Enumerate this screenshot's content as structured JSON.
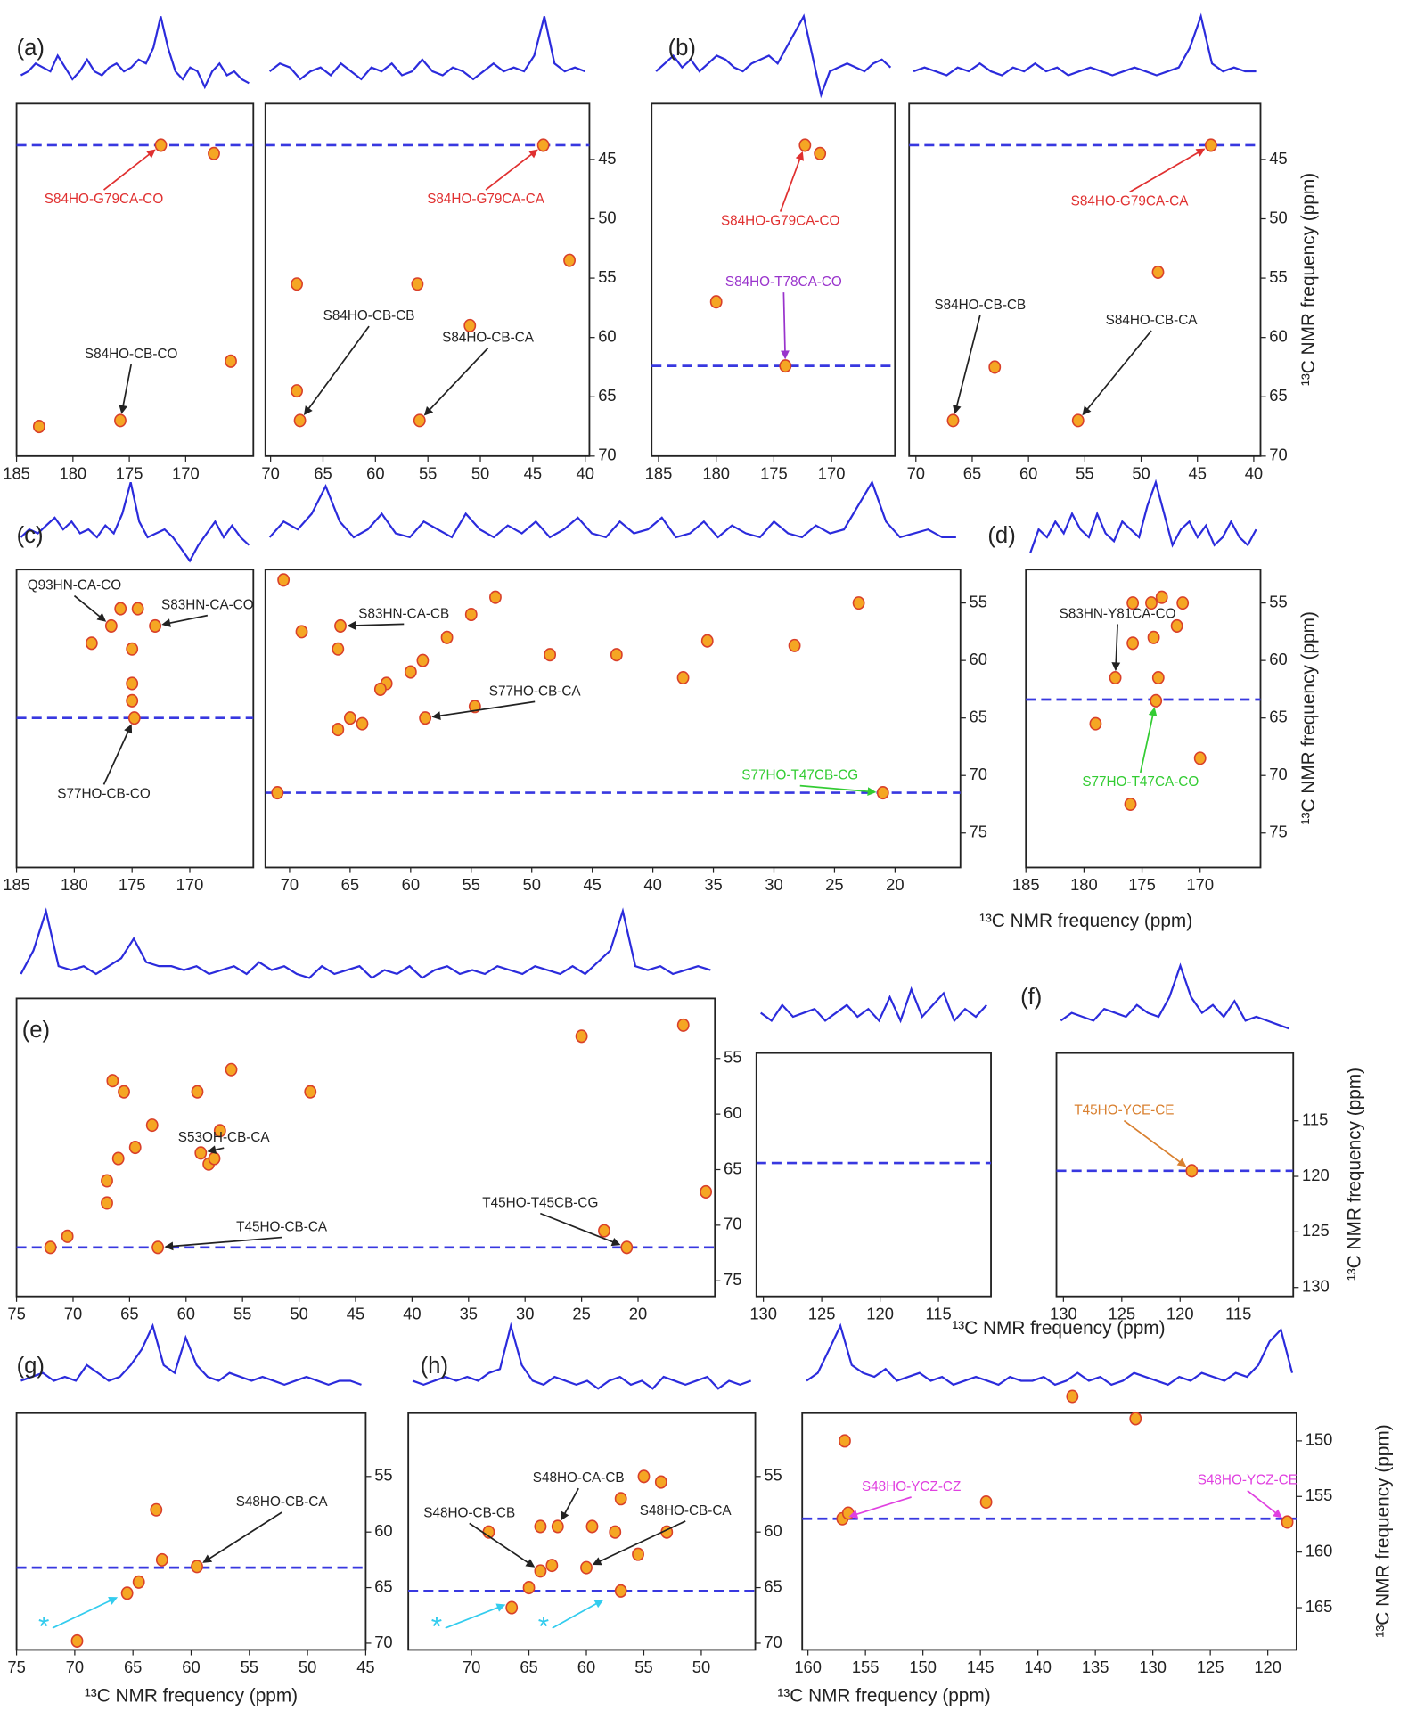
{
  "colors": {
    "trace": "#2b2bdc",
    "peak": "#f5a623",
    "contour": "#d9402a",
    "hline": "#3838e0",
    "frame": "#222222"
  },
  "chart_data": [
    {
      "type": "contour",
      "label": "(a)",
      "xlim": [
        185,
        164
      ],
      "xticks": [
        185,
        180,
        175,
        170
      ],
      "ylim": [
        40.3,
        70
      ],
      "trace": [
        0.25,
        0.3,
        0.4,
        0.35,
        0.3,
        0.5,
        0.35,
        0.2,
        0.3,
        0.45,
        0.3,
        0.25,
        0.35,
        0.4,
        0.3,
        0.35,
        0.45,
        0.4,
        0.6,
        1.0,
        0.6,
        0.3,
        0.2,
        0.35,
        0.3,
        0.1,
        0.3,
        0.4,
        0.25,
        0.3,
        0.2,
        0.15
      ],
      "peaks": {
        "x": [
          172.2,
          175.8,
          167.5,
          166,
          183
        ],
        "y": [
          43.8,
          67,
          44.5,
          62,
          67.5
        ]
      },
      "hline": 43.8,
      "annotations": [
        {
          "text": "S84HO-G79CA-CO",
          "x": 172.2,
          "y": 43.8,
          "color": "#e03030"
        },
        {
          "text": "S84HO-CB-CO",
          "x": 175.8,
          "y": 67,
          "color": "#222222"
        }
      ]
    },
    {
      "type": "contour",
      "xlim": [
        70.5,
        39.6
      ],
      "xticks": [
        70,
        65,
        60,
        55,
        50,
        45,
        40
      ],
      "ylim": [
        40.3,
        70
      ],
      "yticks": [
        45,
        50,
        55,
        60,
        65,
        70
      ],
      "trace": [
        0.3,
        0.4,
        0.35,
        0.2,
        0.3,
        0.35,
        0.25,
        0.4,
        0.3,
        0.2,
        0.35,
        0.3,
        0.4,
        0.25,
        0.3,
        0.45,
        0.3,
        0.25,
        0.35,
        0.3,
        0.2,
        0.3,
        0.4,
        0.3,
        0.35,
        0.3,
        0.5,
        1.0,
        0.4,
        0.3,
        0.35,
        0.3
      ],
      "peaks": {
        "x": [
          44,
          67.2,
          55.8,
          67.5,
          56,
          67.5,
          41.5,
          51
        ],
        "y": [
          43.8,
          67,
          67,
          55.5,
          55.5,
          64.5,
          53.5,
          59
        ]
      },
      "hline": 43.8,
      "annotations": [
        {
          "text": "S84HO-G79CA-CA",
          "x": 44,
          "y": 43.8,
          "color": "#e03030"
        },
        {
          "text": "S84HO-CB-CB",
          "x": 67.2,
          "y": 67,
          "color": "#222222"
        },
        {
          "text": "S84HO-CB-CA",
          "x": 55.8,
          "y": 67,
          "color": "#222222"
        }
      ]
    },
    {
      "type": "contour",
      "label": "(b)",
      "xlim": [
        185.6,
        164.5
      ],
      "xticks": [
        185,
        180,
        175,
        170
      ],
      "ylim": [
        40.3,
        70
      ],
      "trace": [
        0.3,
        0.4,
        0.5,
        0.35,
        0.45,
        0.3,
        0.4,
        0.5,
        0.45,
        0.35,
        0.3,
        0.4,
        0.45,
        0.5,
        0.4,
        0.6,
        0.8,
        1.0,
        0.5,
        0.0,
        0.3,
        0.35,
        0.4,
        0.35,
        0.3,
        0.4,
        0.45,
        0.35
      ],
      "peaks": {
        "x": [
          172.3,
          174,
          180,
          171
        ],
        "y": [
          43.8,
          62.4,
          57,
          44.5
        ]
      },
      "hline": 62.4,
      "annotations": [
        {
          "text": "S84HO-G79CA-CO",
          "x": 172.3,
          "y": 43.8,
          "color": "#e03030"
        },
        {
          "text": "S84HO-T78CA-CO",
          "x": 174,
          "y": 62.4,
          "color": "#9933cc"
        }
      ]
    },
    {
      "type": "contour",
      "xlim": [
        70.6,
        39.4
      ],
      "xticks": [
        70,
        65,
        60,
        55,
        50,
        45,
        40
      ],
      "ylim": [
        40.3,
        70
      ],
      "yticks": [
        45,
        50,
        55,
        60,
        65,
        70
      ],
      "ylabel": "¹³C NMR frequency (ppm)",
      "trace": [
        0.3,
        0.35,
        0.3,
        0.25,
        0.35,
        0.3,
        0.4,
        0.3,
        0.25,
        0.35,
        0.3,
        0.4,
        0.3,
        0.35,
        0.25,
        0.3,
        0.35,
        0.3,
        0.25,
        0.3,
        0.35,
        0.3,
        0.25,
        0.3,
        0.35,
        0.6,
        1.0,
        0.4,
        0.3,
        0.35,
        0.3,
        0.3
      ],
      "peaks": {
        "x": [
          43.8,
          66.7,
          55.6,
          63,
          48.5
        ],
        "y": [
          43.8,
          67,
          67,
          62.5,
          54.5
        ]
      },
      "hline": 43.8,
      "annotations": [
        {
          "text": "S84HO-G79CA-CA",
          "x": 43.8,
          "y": 43.8,
          "color": "#e03030"
        },
        {
          "text": "S84HO-CB-CB",
          "x": 66.7,
          "y": 67,
          "color": "#222222"
        },
        {
          "text": "S84HO-CB-CA",
          "x": 55.6,
          "y": 67,
          "color": "#222222"
        }
      ]
    },
    {
      "type": "contour",
      "label": "(c)",
      "xlim": [
        185,
        164.5
      ],
      "xticks": [
        185,
        180,
        175,
        170
      ],
      "ylim": [
        52.1,
        78
      ],
      "trace": [
        0.3,
        0.4,
        0.35,
        0.45,
        0.55,
        0.4,
        0.5,
        0.35,
        0.4,
        0.3,
        0.45,
        0.35,
        0.6,
        1.0,
        0.5,
        0.3,
        0.35,
        0.4,
        0.3,
        0.15,
        0.0,
        0.2,
        0.35,
        0.5,
        0.3,
        0.45,
        0.3,
        0.2
      ],
      "peaks": {
        "x": [
          176.8,
          173,
          174.8,
          176,
          174.5,
          175,
          175,
          175,
          178.5
        ],
        "y": [
          57,
          57,
          65,
          55.5,
          55.5,
          59,
          62,
          63.5,
          58.5
        ]
      },
      "hline": 65,
      "annotations": [
        {
          "text": "Q93HN-CA-CO",
          "x": 176.8,
          "y": 57,
          "color": "#222222"
        },
        {
          "text": "S83HN-CA-CO",
          "x": 173,
          "y": 57,
          "color": "#222222"
        },
        {
          "text": "S77HO-CB-CO",
          "x": 174.8,
          "y": 65,
          "color": "#222222"
        }
      ]
    },
    {
      "type": "contour",
      "xlim": [
        72,
        14.6
      ],
      "xticks": [
        70,
        65,
        60,
        55,
        50,
        45,
        40,
        35,
        30,
        25,
        20
      ],
      "ylim": [
        52.1,
        78
      ],
      "yticks": [
        55,
        60,
        65,
        70,
        75
      ],
      "trace": [
        0.3,
        0.5,
        0.4,
        0.6,
        0.95,
        0.5,
        0.3,
        0.4,
        0.6,
        0.35,
        0.3,
        0.5,
        0.4,
        0.3,
        0.6,
        0.4,
        0.3,
        0.45,
        0.35,
        0.5,
        0.3,
        0.4,
        0.55,
        0.35,
        0.3,
        0.5,
        0.35,
        0.4,
        0.55,
        0.3,
        0.35,
        0.5,
        0.3,
        0.45,
        0.35,
        0.3,
        0.5,
        0.35,
        0.3,
        0.45,
        0.35,
        0.4,
        0.7,
        1.0,
        0.5,
        0.3,
        0.35,
        0.4,
        0.3,
        0.3
      ],
      "peaks": {
        "x": [
          65.8,
          58.8,
          21,
          65,
          64,
          66,
          62,
          62.5,
          59,
          57,
          55,
          53,
          60,
          70.5,
          71,
          54.7,
          48.5,
          43,
          35.5,
          37.5,
          28.3,
          23,
          66,
          69
        ],
        "y": [
          57,
          65,
          71.5,
          65,
          65.5,
          66,
          62,
          62.5,
          60,
          58,
          56,
          54.5,
          61,
          53,
          71.5,
          64,
          59.5,
          59.5,
          58.3,
          61.5,
          58.7,
          55,
          59,
          57.5
        ]
      },
      "hline": 71.5,
      "annotations": [
        {
          "text": "S83HN-CA-CB",
          "x": 65.8,
          "y": 57,
          "color": "#222222"
        },
        {
          "text": "S77HO-CB-CA",
          "x": 58.8,
          "y": 65,
          "color": "#222222"
        },
        {
          "text": "S77HO-T47CB-CG",
          "x": 21,
          "y": 71.5,
          "color": "#33cc33"
        }
      ]
    },
    {
      "type": "contour",
      "label": "(d)",
      "xlim": [
        185,
        164.8
      ],
      "xticks": [
        185,
        180,
        175,
        170
      ],
      "ylim": [
        52.1,
        78
      ],
      "yticks": [
        55,
        60,
        65,
        70,
        75
      ],
      "ylabel": "¹³C NMR frequency (ppm)",
      "xlabel": "¹³C NMR frequency (ppm)",
      "trace": [
        0.1,
        0.4,
        0.3,
        0.5,
        0.35,
        0.6,
        0.4,
        0.3,
        0.6,
        0.35,
        0.25,
        0.5,
        0.4,
        0.3,
        0.7,
        1.0,
        0.6,
        0.2,
        0.4,
        0.5,
        0.3,
        0.45,
        0.2,
        0.3,
        0.5,
        0.3,
        0.2,
        0.4
      ],
      "peaks": {
        "x": [
          177.3,
          173.8,
          175.8,
          174.2,
          173.3,
          175.8,
          174,
          173.6,
          171.5,
          172,
          179,
          176,
          170
        ],
        "y": [
          61.5,
          63.5,
          55,
          55,
          54.5,
          58.5,
          58,
          61.5,
          55,
          57,
          65.5,
          72.5,
          68.5
        ]
      },
      "hline": 63.4,
      "annotations": [
        {
          "text": "S83HN-Y81CA-CO",
          "x": 177.3,
          "y": 61.5,
          "color": "#222222"
        },
        {
          "text": "S77HO-T47CA-CO",
          "x": 173.8,
          "y": 63.5,
          "color": "#33cc33"
        }
      ]
    },
    {
      "type": "contour",
      "label": "(e)",
      "xlim": [
        75,
        13.2
      ],
      "xticks": [
        75,
        70,
        65,
        60,
        55,
        50,
        45,
        40,
        35,
        30,
        25,
        20
      ],
      "ylim": [
        49.6,
        76.4
      ],
      "yticks": [
        55,
        60,
        65,
        70,
        75
      ],
      "trace": [
        0.2,
        0.5,
        1.0,
        0.3,
        0.25,
        0.3,
        0.2,
        0.3,
        0.4,
        0.65,
        0.35,
        0.3,
        0.3,
        0.25,
        0.3,
        0.2,
        0.25,
        0.3,
        0.2,
        0.35,
        0.25,
        0.3,
        0.2,
        0.15,
        0.3,
        0.2,
        0.25,
        0.3,
        0.15,
        0.25,
        0.2,
        0.3,
        0.15,
        0.25,
        0.3,
        0.2,
        0.25,
        0.2,
        0.3,
        0.25,
        0.2,
        0.3,
        0.25,
        0.2,
        0.3,
        0.2,
        0.35,
        0.5,
        1.0,
        0.3,
        0.25,
        0.3,
        0.2,
        0.25,
        0.3,
        0.25
      ],
      "peaks": {
        "x": [
          58.7,
          62.5,
          21,
          66.5,
          65.5,
          66,
          67,
          64.5,
          58,
          59,
          56,
          57.5,
          72,
          70.5,
          23,
          67,
          16,
          49,
          25,
          14,
          63,
          57
        ],
        "y": [
          63.5,
          72,
          72,
          57,
          58,
          64,
          66,
          63,
          64.5,
          58,
          56,
          64,
          72,
          71,
          70.5,
          68,
          52,
          58,
          53,
          67,
          61,
          61.5
        ]
      },
      "hline": 72,
      "annotations": [
        {
          "text": "S53OH-CB-CA",
          "x": 58.7,
          "y": 63.5,
          "color": "#222222"
        },
        {
          "text": "T45HO-CB-CA",
          "x": 62.5,
          "y": 72,
          "color": "#222222"
        },
        {
          "text": "T45HO-T45CB-CG",
          "x": 21,
          "y": 72,
          "color": "#222222"
        }
      ]
    },
    {
      "type": "contour",
      "xlim": [
        130.6,
        110.5
      ],
      "xticks": [
        130,
        125,
        120,
        115
      ],
      "ylim": [
        108.9,
        130.8
      ],
      "trace": [
        0.4,
        0.3,
        0.5,
        0.35,
        0.4,
        0.45,
        0.3,
        0.4,
        0.5,
        0.35,
        0.45,
        0.3,
        0.6,
        0.3,
        0.7,
        0.35,
        0.5,
        0.65,
        0.3,
        0.45,
        0.35,
        0.5
      ],
      "hline": 118.8
    },
    {
      "type": "contour",
      "label": "(f)",
      "xlim": [
        130.6,
        110.3
      ],
      "xticks": [
        130,
        125,
        120,
        115
      ],
      "ylim": [
        108.9,
        130.8
      ],
      "yticks": [
        115,
        120,
        125,
        130
      ],
      "ylabel": "¹³C NMR frequency (ppm)",
      "xlabel": "¹³C NMR frequency (ppm)",
      "trace": [
        0.3,
        0.4,
        0.35,
        0.3,
        0.45,
        0.4,
        0.35,
        0.5,
        0.4,
        0.35,
        0.6,
        1.0,
        0.6,
        0.4,
        0.5,
        0.35,
        0.55,
        0.3,
        0.35,
        0.3,
        0.25,
        0.2
      ],
      "peaks": {
        "x": [
          119
        ],
        "y": [
          119.5
        ]
      },
      "hline": 119.5,
      "annotations": [
        {
          "text": "T45HO-YCE-CE",
          "x": 119,
          "y": 119.5,
          "color": "#d98030"
        }
      ]
    },
    {
      "type": "contour",
      "label": "(g)",
      "xlim": [
        75,
        45
      ],
      "xticks": [
        75,
        70,
        65,
        60,
        55,
        50,
        45
      ],
      "ylim": [
        49.3,
        70.6
      ],
      "yticks": [
        55,
        60,
        65,
        70
      ],
      "xlabel": "¹³C NMR frequency (ppm)",
      "trace": [
        0.3,
        0.35,
        0.4,
        0.3,
        0.35,
        0.3,
        0.5,
        0.4,
        0.3,
        0.35,
        0.5,
        0.7,
        1.0,
        0.5,
        0.4,
        0.85,
        0.5,
        0.35,
        0.3,
        0.4,
        0.35,
        0.3,
        0.35,
        0.3,
        0.25,
        0.3,
        0.35,
        0.3,
        0.25,
        0.3,
        0.3,
        0.25
      ],
      "peaks": {
        "x": [
          59.5,
          62.5,
          64.5,
          65.5,
          63,
          69.8
        ],
        "y": [
          63.1,
          62.5,
          64.5,
          65.5,
          58,
          69.8
        ]
      },
      "hline": 63.2,
      "annotations": [
        {
          "text": "S48HO-CB-CA",
          "x": 59.5,
          "y": 63.1,
          "color": "#222222"
        },
        {
          "text": "*",
          "x": 65.8,
          "y": 65.6,
          "color": "#33ccee"
        }
      ]
    },
    {
      "type": "contour",
      "label": "(h)",
      "xlim": [
        75.5,
        45.3
      ],
      "xticks": [
        70,
        65,
        60,
        55,
        50
      ],
      "ylim": [
        49.3,
        70.6
      ],
      "yticks": [
        55,
        60,
        65,
        70
      ],
      "trace": [
        0.3,
        0.25,
        0.3,
        0.35,
        0.3,
        0.35,
        0.3,
        0.4,
        0.45,
        1.0,
        0.5,
        0.3,
        0.25,
        0.35,
        0.3,
        0.25,
        0.3,
        0.2,
        0.3,
        0.35,
        0.25,
        0.3,
        0.2,
        0.35,
        0.3,
        0.25,
        0.3,
        0.35,
        0.2,
        0.3,
        0.25,
        0.3
      ],
      "peaks": {
        "x": [
          64,
          62.5,
          60,
          63,
          65,
          66.5,
          59.5,
          57,
          55,
          57,
          53,
          57.5,
          68.5,
          55.5,
          64,
          53.5
        ],
        "y": [
          63.5,
          59.5,
          63.2,
          63,
          65,
          66.8,
          59.5,
          57,
          55,
          65.3,
          60,
          60,
          60,
          62,
          59.5,
          55.5
        ]
      },
      "hline": 65.3,
      "annotations": [
        {
          "text": "S48HO-CB-CB",
          "x": 64,
          "y": 63.5,
          "color": "#222222"
        },
        {
          "text": "S48HO-CA-CB",
          "x": 62.5,
          "y": 59.5,
          "color": "#222222"
        },
        {
          "text": "S48HO-CB-CA",
          "x": 60,
          "y": 63.2,
          "color": "#222222"
        },
        {
          "text": "*",
          "x": 66.5,
          "y": 66.3,
          "color": "#33ccee"
        },
        {
          "text": "*",
          "x": 58,
          "y": 65.8,
          "color": "#33ccee"
        }
      ]
    },
    {
      "type": "contour",
      "xlim": [
        160.5,
        117.5
      ],
      "xticks": [
        160,
        155,
        150,
        145,
        140,
        135,
        130,
        125,
        120
      ],
      "ylim": [
        147.5,
        168.8
      ],
      "yticks": [
        150,
        155,
        160,
        165
      ],
      "ylabel": "¹³C NMR frequency (ppm)",
      "xlabel": "¹³C NMR frequency (ppm)",
      "trace": [
        0.3,
        0.4,
        0.7,
        1.0,
        0.5,
        0.4,
        0.35,
        0.45,
        0.3,
        0.35,
        0.4,
        0.3,
        0.35,
        0.25,
        0.3,
        0.35,
        0.3,
        0.25,
        0.35,
        0.3,
        0.3,
        0.35,
        0.25,
        0.3,
        0.4,
        0.3,
        0.35,
        0.25,
        0.3,
        0.4,
        0.35,
        0.3,
        0.25,
        0.35,
        0.3,
        0.4,
        0.35,
        0.3,
        0.4,
        0.35,
        0.5,
        0.8,
        0.95,
        0.4
      ],
      "peaks": {
        "x": [
          157,
          118.3,
          156.5,
          144.5,
          131.5,
          137,
          156.8
        ],
        "y": [
          157,
          157.3,
          156.5,
          155.5,
          148,
          146,
          150
        ]
      },
      "hline": 157,
      "annotations": [
        {
          "text": "S48HO-YCZ-CZ",
          "x": 157,
          "y": 157,
          "color": "#e040e0"
        },
        {
          "text": "S48HO-YCZ-CE",
          "x": 118.3,
          "y": 157.3,
          "color": "#e040e0"
        }
      ]
    }
  ]
}
